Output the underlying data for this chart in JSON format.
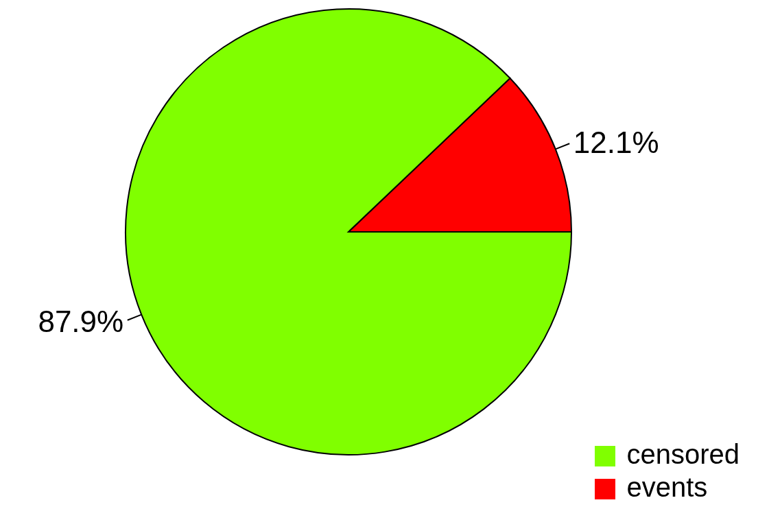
{
  "chart_data": {
    "type": "pie",
    "categories": [
      "events",
      "censored"
    ],
    "values": [
      12.1,
      87.9
    ],
    "colors": [
      "#ff0000",
      "#80ff00"
    ],
    "value_labels": [
      "12.1%",
      "87.9%"
    ],
    "legend": "bottom right"
  }
}
